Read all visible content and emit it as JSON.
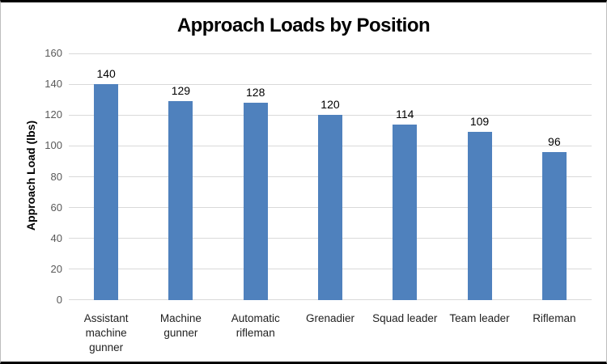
{
  "chart_data": {
    "type": "bar",
    "title": "Approach Loads by Position",
    "xlabel": "",
    "ylabel": "Approach Load (lbs)",
    "categories": [
      "Assistant machine gunner",
      "Machine gunner",
      "Automatic rifleman",
      "Grenadier",
      "Squad leader",
      "Team leader",
      "Rifleman"
    ],
    "values": [
      140,
      129,
      128,
      120,
      114,
      109,
      96
    ],
    "show_data_labels": true,
    "ylim": [
      0,
      160
    ],
    "ytick_step": 20,
    "yticks": [
      0,
      20,
      40,
      60,
      80,
      100,
      120,
      140,
      160
    ],
    "legend_position": "none",
    "grid": "horizontal",
    "colors": {
      "bar": "#4F81BD",
      "gridline": "#D9D9D9",
      "tick_label": "#595959",
      "text": "#000000",
      "frame_top_bottom": "#000000",
      "frame_sides": "#BDBDBD",
      "background": "#FFFFFF"
    }
  }
}
